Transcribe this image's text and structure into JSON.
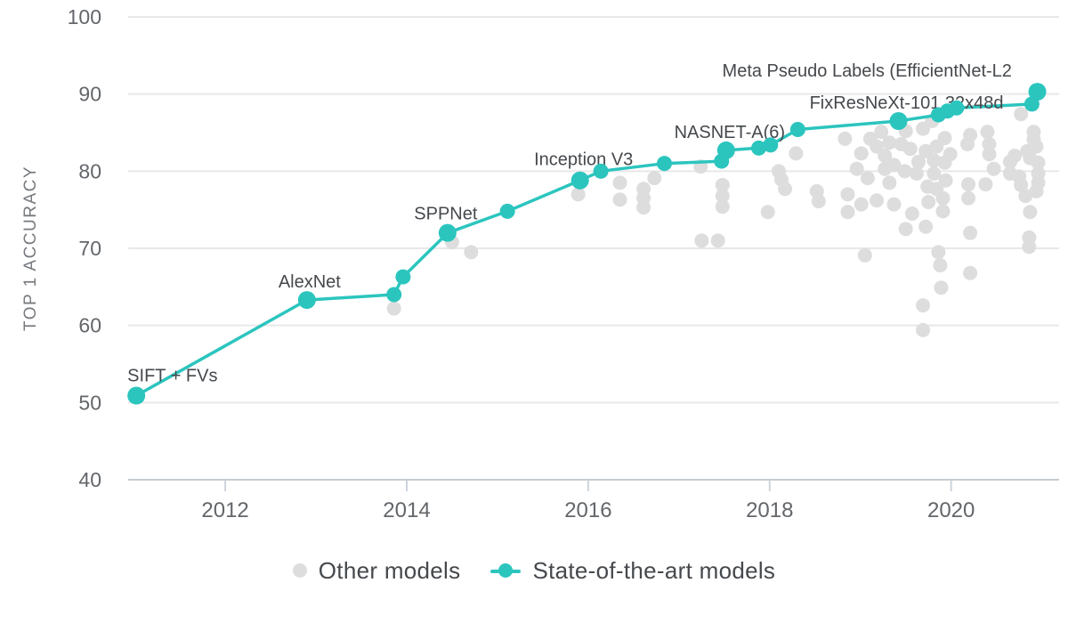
{
  "chart_data": {
    "type": "scatter",
    "title": "",
    "y_axis": {
      "title": "TOP 1 ACCURACY",
      "min": 40,
      "max": 100,
      "ticks": [
        40,
        50,
        60,
        70,
        80,
        90,
        100
      ],
      "grid": true
    },
    "x_axis": {
      "title": "",
      "min": 2010.93,
      "max": 2021.19,
      "ticks": [
        2012,
        2014,
        2016,
        2018,
        2020
      ],
      "grid": false
    },
    "legend": [
      {
        "name": "other",
        "label": "Other models",
        "marker": "dot"
      },
      {
        "name": "sota",
        "label": "State-of-the-art models",
        "marker": "line-dot"
      }
    ],
    "legend_position": "bottom-center",
    "colors": {
      "sota_teal": "#2BC5BE",
      "other_gray": "#DDDDDD",
      "gridline": "#E8E8E9",
      "axis_line": "#C5CBD0",
      "tick_mark": "#CBD4DB",
      "tick_label": "#63666A",
      "annotation": "#45484C",
      "axis_title": "#777A7E",
      "background": "#FFFFFF"
    },
    "series": [
      {
        "name": "State-of-the-art models",
        "type": "line+scatter",
        "points": [
          {
            "x": 2011.02,
            "y": 50.9,
            "label": "SIFT + FVs",
            "label_dx": -10,
            "label_dy": -16,
            "label_anchor": "start"
          },
          {
            "x": 2012.9,
            "y": 63.3,
            "label": "AlexNet",
            "label_dx": 3,
            "label_dy": -14,
            "label_anchor": "middle"
          },
          {
            "x": 2013.86,
            "y": 64.0
          },
          {
            "x": 2013.96,
            "y": 66.3
          },
          {
            "x": 2014.45,
            "y": 72.0,
            "label": "SPPNet",
            "label_dx": -2,
            "label_dy": -15,
            "label_anchor": "middle"
          },
          {
            "x": 2015.11,
            "y": 74.8
          },
          {
            "x": 2015.91,
            "y": 78.8,
            "label": "Inception V3",
            "label_dx": 4,
            "label_dy": -17,
            "label_anchor": "middle"
          },
          {
            "x": 2016.14,
            "y": 80.0
          },
          {
            "x": 2016.84,
            "y": 81.0
          },
          {
            "x": 2017.47,
            "y": 81.3
          },
          {
            "x": 2017.52,
            "y": 82.7,
            "label": "NASNET-A(6)",
            "label_dx": 4,
            "label_dy": -14,
            "label_anchor": "middle"
          },
          {
            "x": 2017.88,
            "y": 83.0
          },
          {
            "x": 2018.01,
            "y": 83.4
          },
          {
            "x": 2018.31,
            "y": 85.4
          },
          {
            "x": 2019.42,
            "y": 86.5,
            "label": "FixResNeXt-101 32x48d",
            "label_dx": 9,
            "label_dy": -14,
            "label_anchor": "middle"
          },
          {
            "x": 2019.86,
            "y": 87.3
          },
          {
            "x": 2019.96,
            "y": 87.8
          },
          {
            "x": 2020.06,
            "y": 88.2
          },
          {
            "x": 2020.89,
            "y": 88.7
          },
          {
            "x": 2020.95,
            "y": 90.3,
            "label": "Meta Pseudo Labels (EfficientNet-L2",
            "label_dx": -354,
            "label_dy": -17,
            "label_anchor": "start"
          }
        ]
      },
      {
        "name": "Other models",
        "type": "scatter",
        "points": [
          [
            2013.86,
            62.2
          ],
          [
            2014.5,
            70.8
          ],
          [
            2014.71,
            69.5
          ],
          [
            2015.89,
            77.0
          ],
          [
            2016.35,
            78.5
          ],
          [
            2016.35,
            76.3
          ],
          [
            2016.61,
            77.7
          ],
          [
            2016.61,
            76.5
          ],
          [
            2016.61,
            75.3
          ],
          [
            2016.73,
            79.1
          ],
          [
            2017.24,
            80.6
          ],
          [
            2017.25,
            71.0
          ],
          [
            2017.43,
            71.0
          ],
          [
            2017.48,
            78.2
          ],
          [
            2017.48,
            76.8
          ],
          [
            2017.48,
            75.4
          ],
          [
            2017.98,
            74.7
          ],
          [
            2018.1,
            80.0
          ],
          [
            2018.13,
            78.9
          ],
          [
            2018.17,
            77.7
          ],
          [
            2018.29,
            82.3
          ],
          [
            2018.52,
            77.4
          ],
          [
            2018.54,
            76.1
          ],
          [
            2018.83,
            84.2
          ],
          [
            2018.86,
            77.0
          ],
          [
            2018.86,
            74.7
          ],
          [
            2018.96,
            80.3
          ],
          [
            2019.01,
            82.3
          ],
          [
            2019.01,
            75.7
          ],
          [
            2019.05,
            69.1
          ],
          [
            2019.08,
            79.1
          ],
          [
            2019.11,
            84.2
          ],
          [
            2019.18,
            83.2
          ],
          [
            2019.18,
            76.2
          ],
          [
            2019.23,
            85.1
          ],
          [
            2019.27,
            82.0
          ],
          [
            2019.27,
            80.3
          ],
          [
            2019.32,
            83.7
          ],
          [
            2019.32,
            78.5
          ],
          [
            2019.37,
            80.8
          ],
          [
            2019.37,
            75.7
          ],
          [
            2019.45,
            83.5
          ],
          [
            2019.49,
            80.0
          ],
          [
            2019.5,
            85.2
          ],
          [
            2019.5,
            72.5
          ],
          [
            2019.55,
            82.9
          ],
          [
            2019.57,
            74.5
          ],
          [
            2019.62,
            79.7
          ],
          [
            2019.64,
            81.2
          ],
          [
            2019.69,
            85.5
          ],
          [
            2019.69,
            62.6
          ],
          [
            2019.69,
            59.4
          ],
          [
            2019.72,
            82.6
          ],
          [
            2019.72,
            72.8
          ],
          [
            2019.74,
            78.0
          ],
          [
            2019.75,
            76.0
          ],
          [
            2019.79,
            86.5
          ],
          [
            2019.81,
            81.4
          ],
          [
            2019.81,
            79.7
          ],
          [
            2019.84,
            83.2
          ],
          [
            2019.84,
            77.7
          ],
          [
            2019.86,
            69.5
          ],
          [
            2019.88,
            67.8
          ],
          [
            2019.89,
            64.9
          ],
          [
            2019.91,
            76.5
          ],
          [
            2019.91,
            74.8
          ],
          [
            2019.93,
            84.3
          ],
          [
            2019.93,
            81.1
          ],
          [
            2019.94,
            78.8
          ],
          [
            2019.99,
            82.2
          ],
          [
            2020.18,
            83.5
          ],
          [
            2020.19,
            78.3
          ],
          [
            2020.19,
            76.5
          ],
          [
            2020.21,
            84.7
          ],
          [
            2020.21,
            72.0
          ],
          [
            2020.21,
            66.8
          ],
          [
            2020.38,
            78.3
          ],
          [
            2020.4,
            85.1
          ],
          [
            2020.42,
            83.5
          ],
          [
            2020.42,
            82.2
          ],
          [
            2020.47,
            80.3
          ],
          [
            2020.65,
            81.2
          ],
          [
            2020.65,
            79.7
          ],
          [
            2020.7,
            82.0
          ],
          [
            2020.75,
            79.3
          ],
          [
            2020.77,
            87.4
          ],
          [
            2020.77,
            78.2
          ],
          [
            2020.82,
            76.8
          ],
          [
            2020.84,
            82.6
          ],
          [
            2020.86,
            71.4
          ],
          [
            2020.86,
            70.2
          ],
          [
            2020.87,
            81.7
          ],
          [
            2020.87,
            74.7
          ],
          [
            2020.91,
            85.1
          ],
          [
            2020.91,
            84.1
          ],
          [
            2020.94,
            83.2
          ],
          [
            2020.94,
            77.4
          ],
          [
            2020.96,
            81.1
          ],
          [
            2020.96,
            79.7
          ],
          [
            2020.96,
            78.5
          ]
        ]
      }
    ]
  }
}
